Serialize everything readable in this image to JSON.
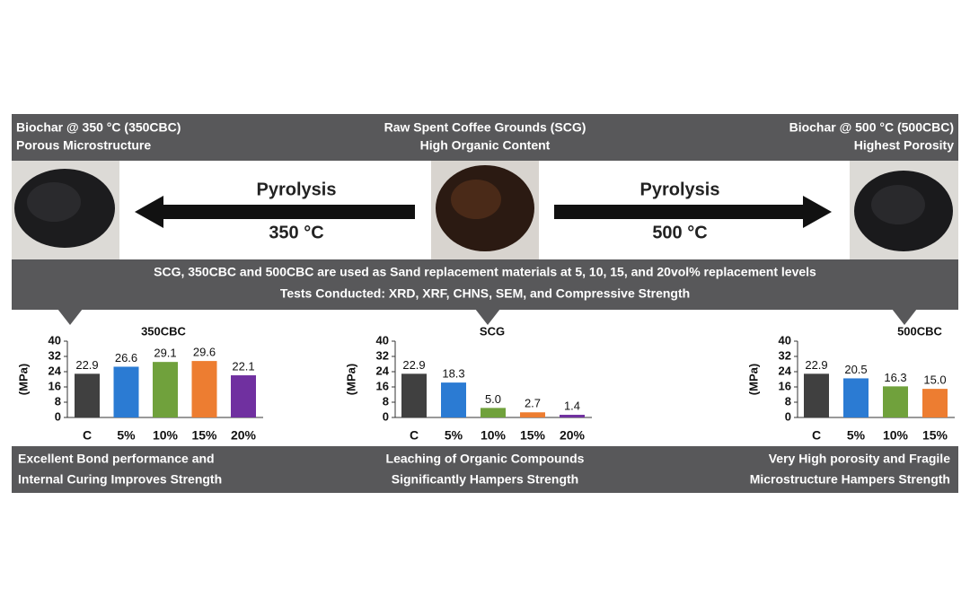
{
  "header": {
    "left": {
      "title": "Biochar @ 350 °C (350CBC)",
      "subtitle": "Porous Microstructure"
    },
    "center": {
      "title": "Raw Spent Coffee Grounds (SCG)",
      "subtitle": "High Organic Content"
    },
    "right": {
      "title": "Biochar @ 500 °C (500CBC)",
      "subtitle": "Highest Porosity"
    }
  },
  "arrows": {
    "left": {
      "label": "Pyrolysis",
      "temperature": "350 °C"
    },
    "right": {
      "label": "Pyrolysis",
      "temperature": "500 °C"
    }
  },
  "banner": {
    "line1": "SCG, 350CBC and 500CBC are used as Sand replacement materials at 5, 10, 15, and 20vol% replacement levels",
    "line2": "Tests Conducted: XRD, XRF, CHNS, SEM, and Compressive Strength"
  },
  "chart_data": [
    {
      "type": "bar",
      "title": "350CBC",
      "ylabel": "(MPa)",
      "categories": [
        "C",
        "5%",
        "10%",
        "15%",
        "20%"
      ],
      "values": [
        22.9,
        26.6,
        29.1,
        29.6,
        22.1
      ],
      "value_labels": [
        "22.9",
        "26.6",
        "29.1",
        "29.6",
        "22.1"
      ],
      "colors": [
        "#404040",
        "#2b7bd3",
        "#70a13c",
        "#ed7d31",
        "#7030a0"
      ],
      "ylim": [
        0,
        40
      ],
      "yticks": [
        0,
        8,
        16,
        24,
        32,
        40
      ]
    },
    {
      "type": "bar",
      "title": "SCG",
      "ylabel": "(MPa)",
      "categories": [
        "C",
        "5%",
        "10%",
        "15%",
        "20%"
      ],
      "values": [
        22.9,
        18.3,
        5.0,
        2.7,
        1.4
      ],
      "value_labels": [
        "22.9",
        "18.3",
        "5.0",
        "2.7",
        "1.4"
      ],
      "colors": [
        "#404040",
        "#2b7bd3",
        "#70a13c",
        "#ed7d31",
        "#7030a0"
      ],
      "ylim": [
        0,
        40
      ],
      "yticks": [
        0,
        8,
        16,
        24,
        32,
        40
      ]
    },
    {
      "type": "bar",
      "title": "500CBC",
      "ylabel": "(MPa)",
      "categories": [
        "C",
        "5%",
        "10%",
        "15%"
      ],
      "values": [
        22.9,
        20.5,
        16.3,
        15.0
      ],
      "value_labels": [
        "22.9",
        "20.5",
        "16.3",
        "15.0"
      ],
      "colors": [
        "#404040",
        "#2b7bd3",
        "#70a13c",
        "#ed7d31"
      ],
      "ylim": [
        0,
        40
      ],
      "yticks": [
        0,
        8,
        16,
        24,
        32,
        40
      ]
    }
  ],
  "footer": {
    "left": {
      "line1": "Excellent Bond performance and",
      "line2": "Internal Curing Improves Strength"
    },
    "center": {
      "line1": "Leaching of Organic Compounds",
      "line2": "Significantly Hampers Strength"
    },
    "right": {
      "line1": "Very High porosity and Fragile",
      "line2": "Microstructure Hampers Strength"
    }
  }
}
